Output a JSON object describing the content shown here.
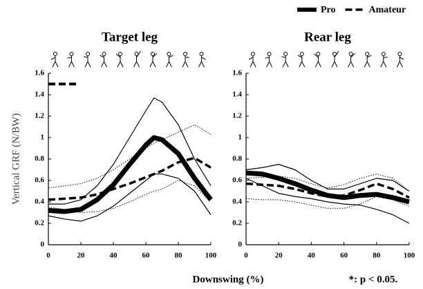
{
  "chart_data": [
    {
      "type": "line",
      "title": "Target leg",
      "x": [
        0,
        10,
        20,
        30,
        40,
        50,
        60,
        65,
        70,
        80,
        90,
        100
      ],
      "xlim": [
        0,
        100
      ],
      "xticks": [
        0,
        20,
        40,
        60,
        80,
        100
      ],
      "ylim": [
        0,
        1.6
      ],
      "yticks": [
        0,
        0.2,
        0.4,
        0.6,
        0.8,
        1,
        1.2,
        1.4,
        1.6
      ],
      "significance": {
        "x": [
          0,
          18
        ],
        "y": 1.5
      },
      "series": [
        {
          "name": "Pro",
          "color": "#000000",
          "style": "solid",
          "width": 7,
          "values": [
            0.32,
            0.31,
            0.33,
            0.42,
            0.56,
            0.75,
            0.93,
            1.0,
            0.98,
            0.85,
            0.62,
            0.42
          ]
        },
        {
          "color": "#000000",
          "style": "solid",
          "width": 1.2,
          "values": [
            0.38,
            0.38,
            0.42,
            0.55,
            0.75,
            1.0,
            1.25,
            1.37,
            1.33,
            1.12,
            0.8,
            0.55
          ]
        },
        {
          "color": "#000000",
          "style": "solid",
          "width": 1.2,
          "values": [
            0.27,
            0.24,
            0.22,
            0.27,
            0.36,
            0.48,
            0.6,
            0.66,
            0.66,
            0.62,
            0.5,
            0.28
          ]
        },
        {
          "name": "Amateur",
          "color": "#000000",
          "style": "dashed",
          "width": 3.5,
          "values": [
            0.42,
            0.43,
            0.44,
            0.47,
            0.52,
            0.57,
            0.63,
            0.66,
            0.69,
            0.77,
            0.81,
            0.72
          ]
        },
        {
          "color": "#000000",
          "style": "dotted",
          "width": 1,
          "values": [
            0.53,
            0.55,
            0.57,
            0.62,
            0.7,
            0.8,
            0.9,
            0.95,
            0.98,
            1.05,
            1.12,
            1.03
          ]
        },
        {
          "color": "#000000",
          "style": "dotted",
          "width": 1,
          "values": [
            0.35,
            0.33,
            0.3,
            0.31,
            0.34,
            0.4,
            0.47,
            0.5,
            0.52,
            0.6,
            0.55,
            0.4
          ]
        }
      ]
    },
    {
      "type": "line",
      "title": "Rear leg",
      "x": [
        0,
        10,
        20,
        30,
        40,
        50,
        60,
        70,
        80,
        90,
        100
      ],
      "xlim": [
        0,
        100
      ],
      "xticks": [
        0,
        20,
        40,
        60,
        80,
        100
      ],
      "ylim": [
        0,
        1.6
      ],
      "yticks": [
        0,
        0.2,
        0.4,
        0.6,
        0.8,
        1,
        1.2,
        1.4,
        1.6
      ],
      "series": [
        {
          "color": "#000000",
          "style": "solid",
          "width": 7,
          "values": [
            0.67,
            0.66,
            0.62,
            0.57,
            0.51,
            0.46,
            0.44,
            0.46,
            0.47,
            0.44,
            0.4
          ]
        },
        {
          "color": "#000000",
          "style": "solid",
          "width": 1.2,
          "values": [
            0.7,
            0.72,
            0.75,
            0.7,
            0.6,
            0.52,
            0.52,
            0.57,
            0.62,
            0.6,
            0.5
          ]
        },
        {
          "color": "#000000",
          "style": "solid",
          "width": 1.2,
          "values": [
            0.62,
            0.55,
            0.48,
            0.45,
            0.43,
            0.4,
            0.38,
            0.37,
            0.33,
            0.28,
            0.2
          ]
        },
        {
          "color": "#000000",
          "style": "dashed",
          "width": 3.5,
          "values": [
            0.57,
            0.56,
            0.55,
            0.52,
            0.48,
            0.45,
            0.46,
            0.51,
            0.57,
            0.52,
            0.44
          ]
        },
        {
          "color": "#000000",
          "style": "dotted",
          "width": 1,
          "values": [
            0.62,
            0.63,
            0.64,
            0.62,
            0.57,
            0.53,
            0.56,
            0.62,
            0.66,
            0.62,
            0.5
          ]
        },
        {
          "color": "#000000",
          "style": "dotted",
          "width": 1,
          "values": [
            0.43,
            0.42,
            0.42,
            0.4,
            0.37,
            0.34,
            0.34,
            0.38,
            0.45,
            0.42,
            0.36
          ]
        }
      ]
    }
  ],
  "y_label": "Vertical GRF (N/BW)",
  "x_label": "Downswing (%)",
  "note": "*: p < 0.05."
}
